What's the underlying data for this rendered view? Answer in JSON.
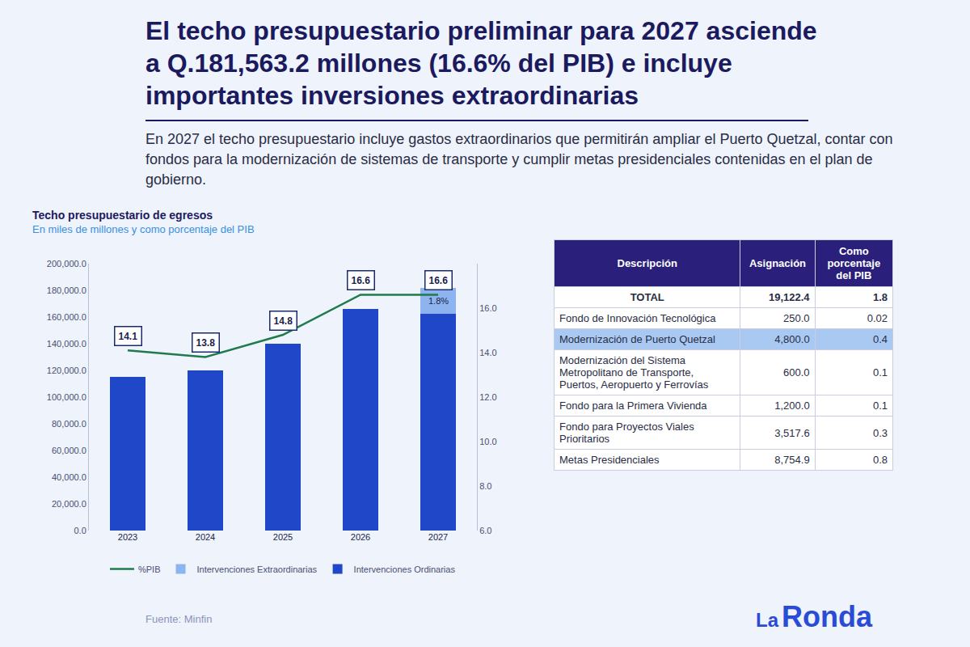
{
  "slide": {
    "title": "El techo presupuestario preliminar para 2027 asciende a Q.181,563.2 millones (16.6% del PIB) e incluye importantes inversiones extraordinarias",
    "text": "En 2027 el techo presupuestario incluye gastos extraordinarios que permitirán ampliar el Puerto Quetzal, contar con fondos para la modernización de sistemas de transporte y cumplir metas presidenciales contenidas en el plan de gobierno.",
    "source": "Fuente: Minfin",
    "brand": "La Ronda"
  },
  "chart_data": {
    "type": "bar",
    "title": "Techo presupuestario de egresos",
    "subtitle": "En miles de millones y como porcentaje del PIB",
    "categories": [
      "2023",
      "2024",
      "2025",
      "2026",
      "2027"
    ],
    "stacked": true,
    "grid": false,
    "legend": "bottom",
    "series": [
      {
        "name": "Intervenciones Ordinarias",
        "type": "bar",
        "color": "#1f47c8",
        "values": [
          115000,
          120000,
          140000,
          166000,
          162440.8
        ]
      },
      {
        "name": "Intervenciones Extraordinarias",
        "type": "bar",
        "color": "#8db4ee",
        "values": [
          null,
          null,
          null,
          null,
          19122.4
        ]
      },
      {
        "name": "%PIB",
        "type": "line",
        "color": "#1f7a4c",
        "axis": "y2",
        "data_labels": true,
        "values": [
          14.1,
          13.8,
          14.8,
          16.6,
          16.6
        ]
      }
    ],
    "ylim": [
      0,
      200000
    ],
    "yticks": [
      {
        "value": 0,
        "label": "0.0"
      },
      {
        "value": 20000,
        "label": "20,000.0"
      },
      {
        "value": 40000,
        "label": "40,000.0"
      },
      {
        "value": 60000,
        "label": "60,000.0"
      },
      {
        "value": 80000,
        "label": "80,000.0"
      },
      {
        "value": 100000,
        "label": "100,000.0"
      },
      {
        "value": 120000,
        "label": "120,000.0"
      },
      {
        "value": 140000,
        "label": "140,000.0"
      },
      {
        "value": 160000,
        "label": "160,000.0"
      },
      {
        "value": 180000,
        "label": "180,000.0"
      },
      {
        "value": 200000,
        "label": "200,000.0"
      }
    ],
    "y2lim": [
      6,
      18
    ],
    "y2ticks": [
      {
        "value": 6,
        "label": "6.0"
      },
      {
        "value": 8,
        "label": "8.0"
      },
      {
        "value": 10,
        "label": "10.0"
      },
      {
        "value": 12,
        "label": "12.0"
      },
      {
        "value": 14,
        "label": "14.0"
      },
      {
        "value": 16,
        "label": "16.0"
      }
    ],
    "annotations": [
      {
        "text": "1.8%",
        "x": "2027"
      }
    ]
  },
  "table": {
    "header": [
      "Descripción",
      "Asignación",
      "Como porcentaje del PIB"
    ],
    "rows": [
      {
        "cells": [
          "TOTAL",
          "19,122.4",
          "1.8"
        ],
        "total": true
      },
      {
        "cells": [
          "Fondo de Innovación Tecnológica",
          "250.0",
          "0.02"
        ]
      },
      {
        "cells": [
          "Modernización de Puerto Quetzal",
          "4,800.0",
          "0.4"
        ],
        "highlight": true
      },
      {
        "cells": [
          "Modernización del Sistema Metropolitano de Transporte, Puertos, Aeropuerto y Ferrovías",
          "600.0",
          "0.1"
        ]
      },
      {
        "cells": [
          "Fondo para la Primera Vivienda",
          "1,200.0",
          "0.1"
        ]
      },
      {
        "cells": [
          "Fondo para Proyectos Viales Prioritarios",
          "3,517.6",
          "0.3"
        ]
      },
      {
        "cells": [
          "Metas Presidenciales",
          "8,754.9",
          "0.8"
        ]
      }
    ]
  }
}
